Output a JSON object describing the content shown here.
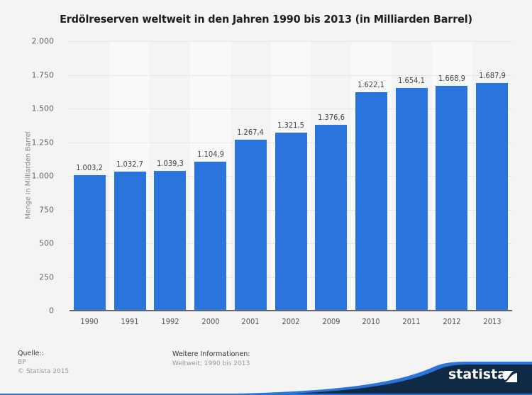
{
  "chart_data": {
    "type": "bar",
    "title": "Erdölreserven weltweit in den Jahren 1990 bis 2013 (in Milliarden Barrel)",
    "xlabel": "",
    "ylabel": "Menge in Milliarden Barrel",
    "categories": [
      "1990",
      "1991",
      "1992",
      "2000",
      "2001",
      "2002",
      "2009",
      "2010",
      "2011",
      "2012",
      "2013"
    ],
    "values": [
      1003.2,
      1032.7,
      1039.3,
      1104.9,
      1267.4,
      1321.5,
      1376.6,
      1622.1,
      1654.1,
      1668.9,
      1687.9
    ],
    "value_labels": [
      "1.003,2",
      "1.032,7",
      "1.039,3",
      "1.104,9",
      "1.267,4",
      "1.321,5",
      "1.376,6",
      "1.622,1",
      "1.654,1",
      "1.668,9",
      "1.687,9"
    ],
    "ylim": [
      0,
      2000
    ],
    "yticks": [
      0,
      250,
      500,
      750,
      1000,
      1250,
      1500,
      1750,
      2000
    ],
    "ytick_labels": [
      "0",
      "250",
      "500",
      "750",
      "1.000",
      "1.250",
      "1.500",
      "1.750",
      "2.000"
    ],
    "grid": true,
    "legend": null,
    "bar_color": "#2a75dc"
  },
  "footer": {
    "source_heading": "Quelle::",
    "source": "BP",
    "copyright": "© Statista 2015",
    "info_heading": "Weitere Informationen:",
    "info": "Weltweit; 1990 bis 2013"
  },
  "brand": {
    "name": "statista",
    "colors": {
      "dark": "#0f2a44",
      "accent": "#2a75dc"
    }
  }
}
